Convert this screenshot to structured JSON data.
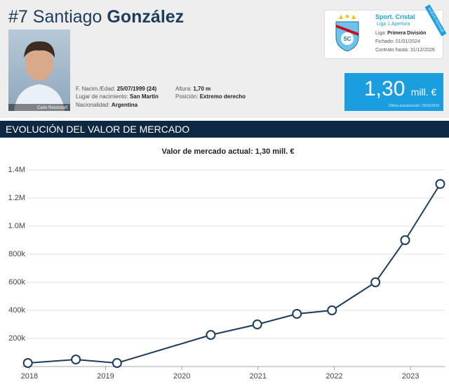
{
  "header": {
    "number": "#7",
    "first_name": "Santiago",
    "last_name": "González",
    "photo_credit": "Carlo Reichstorf"
  },
  "info": [
    {
      "label": "F. Nacim./Edad:",
      "value": "25/07/1999 (24)"
    },
    {
      "label": "Altura:",
      "value": "1,70 m"
    },
    {
      "label": "Lugar de nacimiento:",
      "value": "San Martín"
    },
    {
      "label": "Posición:",
      "value": "Extremo derecho"
    },
    {
      "label": "Nacionalidad:",
      "value": "Argentina"
    }
  ],
  "club": {
    "name": "Sport. Cristal",
    "league_badge": "Liga 1 Apertura",
    "ribbon": "NUEVO FICHAJE",
    "rows": [
      {
        "label": "Liga:",
        "value": "Primera División"
      },
      {
        "label": "Fichado:",
        "value": "01/01/2024"
      },
      {
        "label": "Contrato hasta:",
        "value": "31/12/2026"
      }
    ]
  },
  "market_value": {
    "value": "1,30",
    "unit": "mill. €",
    "updated": "Última actualización: 26/02/2024"
  },
  "section_title": "EVOLUCIÓN DEL VALOR DE MERCADO",
  "chart_data": {
    "type": "line",
    "title": "Valor de mercado actual: 1,30 mill. €",
    "x": [
      2017.98,
      2018.61,
      2019.15,
      2020.38,
      2020.99,
      2021.51,
      2021.97,
      2022.54,
      2022.93,
      2023.39
    ],
    "values": [
      25000,
      50000,
      25000,
      225000,
      300000,
      375000,
      400000,
      600000,
      900000,
      1300000
    ],
    "color": "#1d3d5c",
    "xlim": [
      2017.9,
      2023.45
    ],
    "xticks": [
      2018,
      2019,
      2020,
      2021,
      2022,
      2023
    ],
    "ylim": [
      0,
      1400000
    ],
    "yticks": [
      {
        "value": 200000,
        "label": "200k"
      },
      {
        "value": 400000,
        "label": "400k"
      },
      {
        "value": 600000,
        "label": "600k"
      },
      {
        "value": 800000,
        "label": "800k"
      },
      {
        "value": 1000000,
        "label": "1.0M"
      },
      {
        "value": 1200000,
        "label": "1.2M"
      },
      {
        "value": 1400000,
        "label": "1.4M"
      }
    ],
    "grid": true
  }
}
